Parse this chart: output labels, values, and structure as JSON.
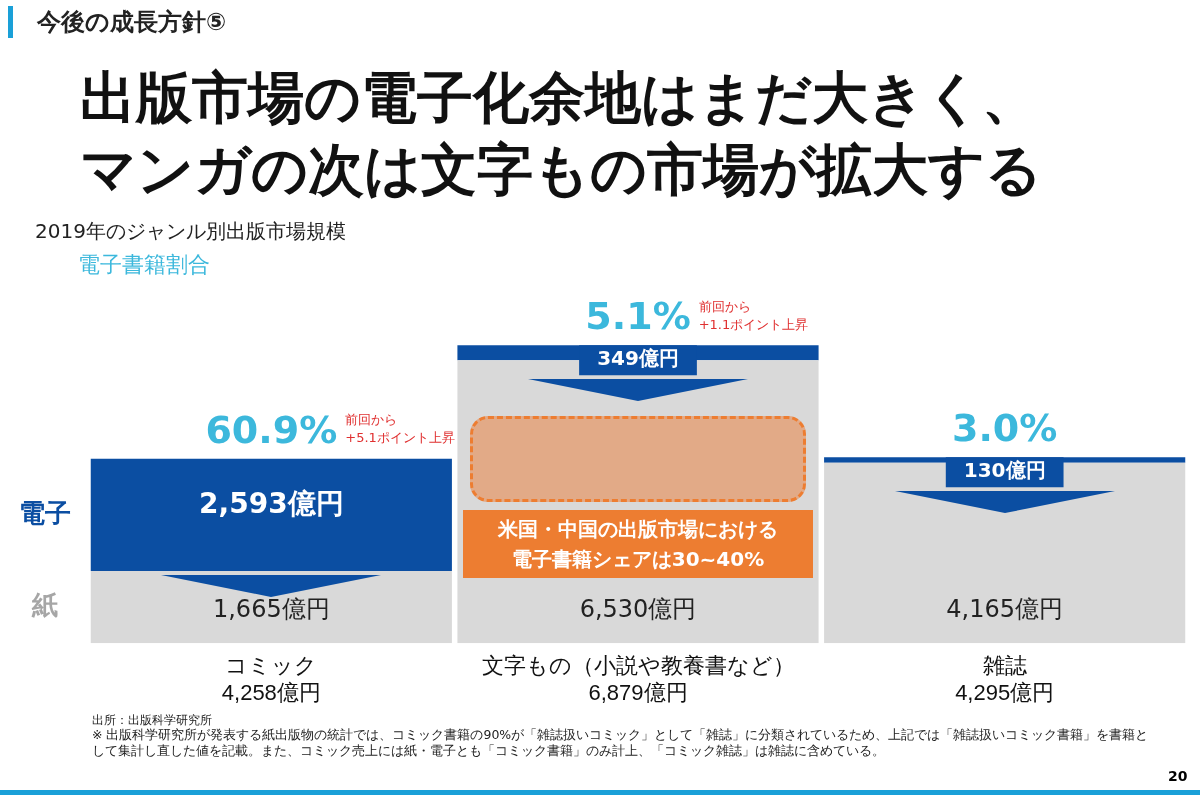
{
  "chart_data": {
    "type": "bar",
    "stacked": true,
    "title": "出版市場の電子化余地はまだ大きく、マンガの次は文字もの市場が拡大する",
    "subtitle": "2019年のジャンル別出版市場規模",
    "categories": [
      "コミック",
      "文字もの（小説や教養書など）",
      "雑誌"
    ],
    "totals": [
      "4,258億円",
      "6,879億円",
      "4,295億円"
    ],
    "series": [
      {
        "name": "紙",
        "color": "#d9d9d9",
        "values": [
          1665,
          6530,
          4165
        ],
        "value_labels": [
          "1,665億円",
          "6,530億円",
          "4,165億円"
        ]
      },
      {
        "name": "電子",
        "color": "#0b4ea2",
        "values": [
          2593,
          349,
          130
        ],
        "value_labels": [
          "2,593億円",
          "349億円",
          "130億円"
        ]
      }
    ],
    "annotations": [
      "今後の成長方針⑤",
      "電子書籍割合",
      "米国・中国の出版市場における電子書籍シェアは30~40%",
      "出所：出版科学研究所",
      "※ 出版科学研究所が発表する紙出版物の統計では、コミック書籍の90%が「雑誌扱いコミック」として「雑誌」に分類されているため、上記では「雑誌扱いコミック書籍」を書籍として集計し直した値を記載。また、コミック売上には紙・電子とも「コミック書籍」のみ計上、「コミック雑誌」は雑誌に含めている。",
      "20",
      "前回から\n+5.1ポイント上昇",
      "前回から\n+1.1ポイント上昇",
      {
        "text": "60.9%",
        "x": "コミック",
        "y": 4258
      },
      {
        "text": "5.1%",
        "x": "文字もの（小説や教養書など）",
        "y": 6879
      },
      {
        "text": "3.0%",
        "x": "雑誌",
        "y": 4295
      }
    ]
  }
}
